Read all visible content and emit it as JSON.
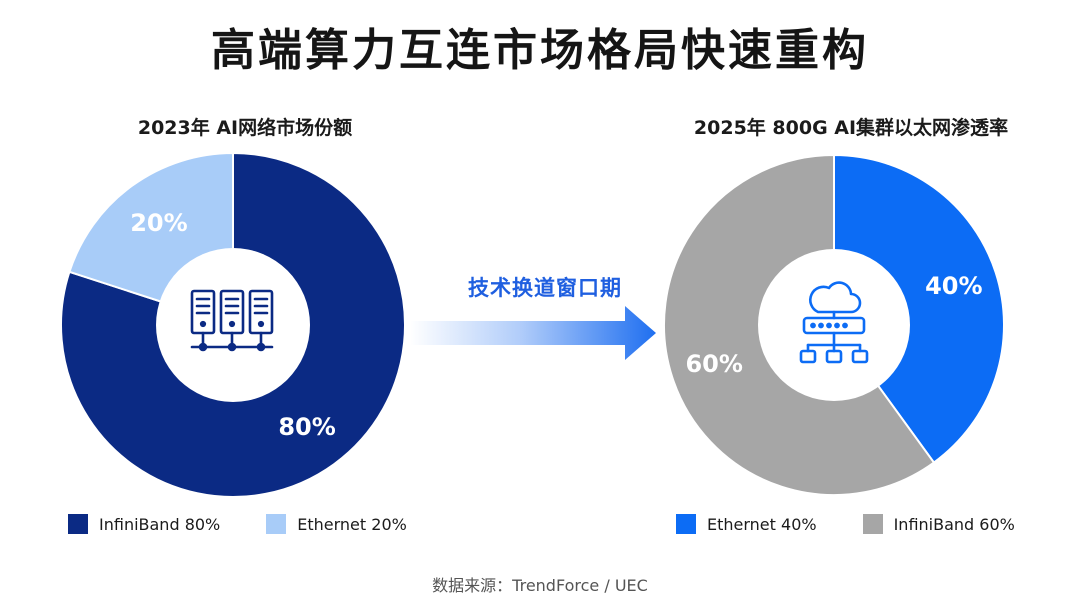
{
  "title": "高端算力互连市场格局快速重构",
  "colors": {
    "infiniband_2023": "#0b2a84",
    "ethernet_2023": "#a8ccf8",
    "ethernet_2025": "#0c6cf5",
    "infiniband_2025": "#a6a6a6",
    "arrow": "#1f6ff0"
  },
  "icons": {
    "left_center": "server-rack-icon",
    "right_center": "cloud-network-icon"
  },
  "transition_label": "技术换道窗口期",
  "source": "数据来源：TrendForce / UEC",
  "chart_data": [
    {
      "type": "pie",
      "title": "2023年 AI网络市场份额",
      "slices": [
        {
          "label": "InfiniBand",
          "value": 80,
          "display": "80%",
          "color": "#0b2a84"
        },
        {
          "label": "Ethernet",
          "value": 20,
          "display": "20%",
          "color": "#a8ccf8"
        }
      ],
      "legend": [
        "InfiniBand 80%",
        "Ethernet 20%"
      ],
      "legend_position": "bottom"
    },
    {
      "type": "pie",
      "title": "2025年 800G AI集群以太网渗透率",
      "slices": [
        {
          "label": "Ethernet",
          "value": 40,
          "display": "40%",
          "color": "#0c6cf5"
        },
        {
          "label": "InfiniBand",
          "value": 60,
          "display": "60%",
          "color": "#a6a6a6"
        }
      ],
      "legend": [
        "Ethernet 40%",
        "InfiniBand 60%"
      ],
      "legend_position": "bottom"
    }
  ]
}
